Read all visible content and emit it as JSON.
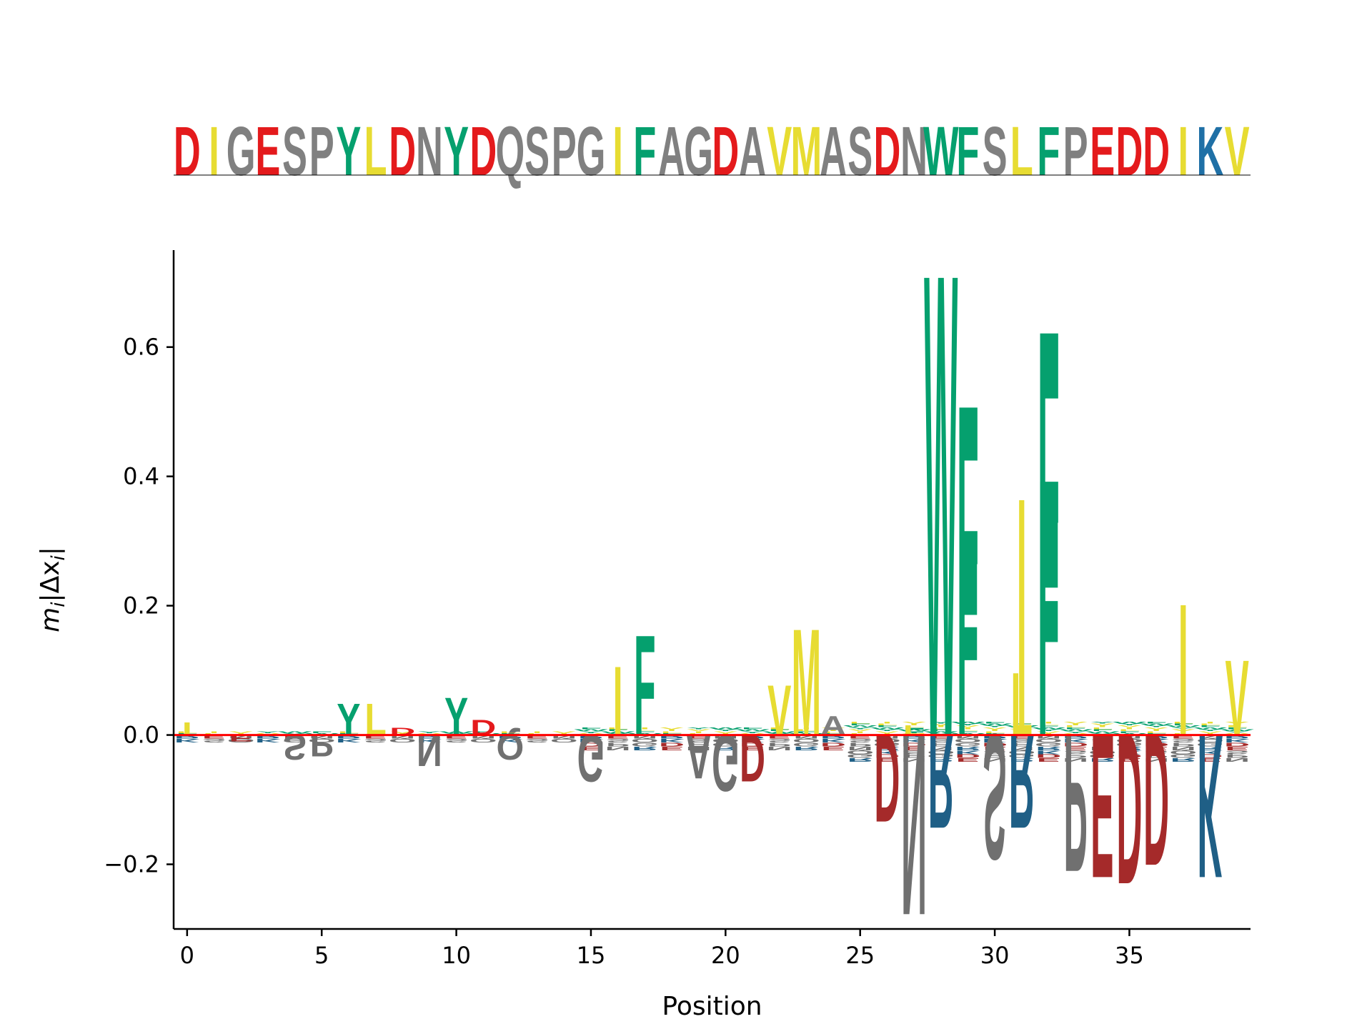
{
  "chart_data": {
    "type": "sequence-logo",
    "sequence": "DIGESPYLDNYDQSPGIFAGDAVMASDNWFSLFPEDDIKV",
    "xlabel": "Position",
    "ylabel_main": "m",
    "ylabel_sub": "i",
    "ylabel_rest": "|Δx",
    "ylabel_sub2": "i",
    "ylabel_end": "|",
    "xlim": [
      -0.5,
      39.5
    ],
    "ylim": [
      -0.3,
      0.75
    ],
    "xticks": [
      0,
      5,
      10,
      15,
      20,
      25,
      30,
      35
    ],
    "yticks": [
      -0.2,
      0.0,
      0.2,
      0.4,
      0.6
    ],
    "ytick_labels": [
      "−0.2",
      "0.0",
      "0.2",
      "0.4",
      "0.6"
    ],
    "xtick_labels": [
      "0",
      "5",
      "10",
      "15",
      "20",
      "25",
      "30",
      "35"
    ],
    "baseline_color": "#ff0000",
    "colors": {
      "acidic": "#e41a1c",
      "hydrophobic": "#e7dc32",
      "aromatic": "#05a06e",
      "basic": "#1f70a6",
      "other": "#808080",
      "acidic_dark": "#a52a2a",
      "basic_dark": "#1f5f86",
      "other_dark": "#707070"
    },
    "positive": [
      [
        [
          "I",
          0.02
        ]
      ],
      [],
      [],
      [],
      [],
      [],
      [
        [
          "Y",
          0.05
        ]
      ],
      [
        [
          "L",
          0.05
        ]
      ],
      [
        [
          "D",
          0.012
        ]
      ],
      [],
      [
        [
          "Y",
          0.06
        ]
      ],
      [
        [
          "D",
          0.024
        ]
      ],
      [],
      [],
      [],
      [],
      [
        [
          "I",
          0.11
        ]
      ],
      [
        [
          "F",
          0.16
        ]
      ],
      [],
      [],
      [],
      [],
      [
        [
          "V",
          0.08
        ]
      ],
      [
        [
          "M",
          0.17
        ]
      ],
      [
        [
          "A",
          0.03
        ]
      ],
      [],
      [],
      [
        [
          "F",
          0.01
        ],
        [
          "L",
          0.015
        ]
      ],
      [
        [
          "W",
          0.74
        ]
      ],
      [
        [
          "F",
          0.53
        ],
        [
          "F",
          0.33
        ]
      ],
      [],
      [
        [
          "L",
          0.1
        ],
        [
          "I",
          0.38
        ]
      ],
      [
        [
          "F",
          0.65
        ],
        [
          "F",
          0.41
        ]
      ],
      [],
      [],
      [],
      [],
      [
        [
          "I",
          0.21
        ]
      ],
      [],
      [
        [
          "V",
          0.12
        ]
      ]
    ],
    "negative": [
      [],
      [],
      [
        [
          "E",
          0.01
        ]
      ],
      [],
      [
        [
          "S",
          0.04
        ]
      ],
      [
        [
          "P",
          0.035
        ]
      ],
      [],
      [],
      [],
      [
        [
          "N",
          0.05
        ]
      ],
      [],
      [],
      [
        [
          "Q",
          0.04
        ]
      ],
      [],
      [],
      [
        [
          "G",
          0.075
        ]
      ],
      [],
      [],
      [],
      [
        [
          "A",
          0.07
        ]
      ],
      [
        [
          "G",
          0.09
        ]
      ],
      [
        [
          "D",
          0.075
        ]
      ],
      [],
      [],
      [],
      [],
      [
        [
          "D",
          0.14
        ]
      ],
      [
        [
          "N",
          0.29
        ]
      ],
      [
        [
          "R",
          0.15
        ]
      ],
      [],
      [
        [
          "S",
          0.2
        ]
      ],
      [
        [
          "R",
          0.15
        ]
      ],
      [],
      [
        [
          "P",
          0.22
        ]
      ],
      [
        [
          "E",
          0.23
        ]
      ],
      [
        [
          "D",
          0.24
        ]
      ],
      [
        [
          "D",
          0.21
        ]
      ],
      [],
      [
        [
          "K",
          0.23
        ]
      ],
      []
    ]
  }
}
